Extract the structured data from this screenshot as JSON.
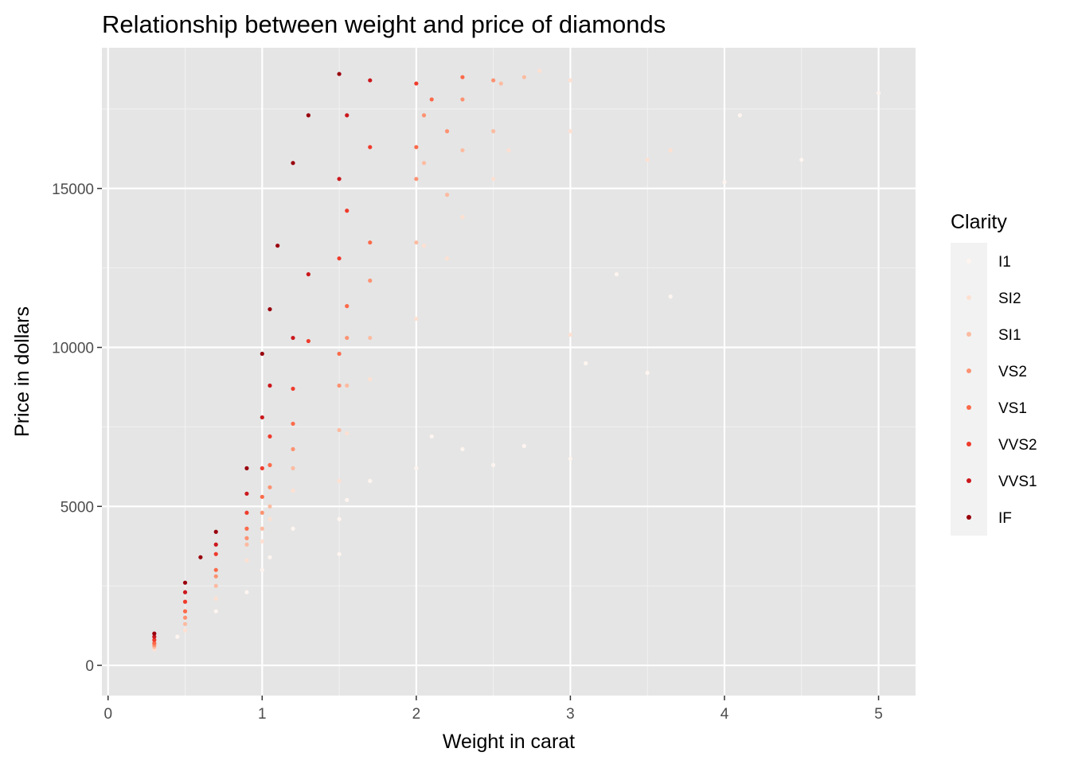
{
  "chart_data": {
    "type": "scatter",
    "title": "Relationship between weight and price of diamonds",
    "xlabel": "Weight in carat",
    "ylabel": "Price in dollars",
    "xlim": [
      0,
      5.2
    ],
    "ylim": [
      0,
      19000
    ],
    "x_ticks": [
      0,
      1,
      2,
      3,
      4,
      5
    ],
    "y_ticks": [
      0,
      5000,
      10000,
      15000
    ],
    "grid": true,
    "legend": {
      "title": "Clarity",
      "position": "right",
      "entries": [
        {
          "name": "I1",
          "color": "#fff5f0"
        },
        {
          "name": "SI2",
          "color": "#fee0d2"
        },
        {
          "name": "SI1",
          "color": "#fcbba1"
        },
        {
          "name": "VS2",
          "color": "#fc9272"
        },
        {
          "name": "VS1",
          "color": "#fb6a4a"
        },
        {
          "name": "VVS2",
          "color": "#ef3b2c"
        },
        {
          "name": "VVS1",
          "color": "#cb181d"
        },
        {
          "name": "IF",
          "color": "#99000d"
        }
      ]
    },
    "series": [
      {
        "name": "I1",
        "points": [
          [
            0.45,
            900
          ],
          [
            0.7,
            1700
          ],
          [
            0.9,
            2300
          ],
          [
            1.0,
            3000
          ],
          [
            1.05,
            3400
          ],
          [
            1.2,
            4300
          ],
          [
            1.5,
            3500
          ],
          [
            1.5,
            4600
          ],
          [
            1.55,
            5200
          ],
          [
            1.7,
            5800
          ],
          [
            2.0,
            6200
          ],
          [
            2.1,
            7200
          ],
          [
            2.3,
            6800
          ],
          [
            2.5,
            6300
          ],
          [
            2.7,
            6900
          ],
          [
            3.0,
            6500
          ],
          [
            3.1,
            9500
          ],
          [
            3.3,
            12300
          ],
          [
            3.5,
            9200
          ],
          [
            3.65,
            11600
          ],
          [
            4.0,
            15200
          ],
          [
            4.1,
            17300
          ],
          [
            4.5,
            15900
          ],
          [
            5.0,
            18000
          ]
        ]
      },
      {
        "name": "SI2",
        "points": [
          [
            0.3,
            500
          ],
          [
            0.5,
            1100
          ],
          [
            0.7,
            2100
          ],
          [
            0.9,
            3300
          ],
          [
            1.0,
            3900
          ],
          [
            1.05,
            4600
          ],
          [
            1.2,
            5500
          ],
          [
            1.5,
            5800
          ],
          [
            1.55,
            7300
          ],
          [
            1.7,
            9000
          ],
          [
            2.0,
            10900
          ],
          [
            2.05,
            13200
          ],
          [
            2.2,
            12800
          ],
          [
            2.3,
            14100
          ],
          [
            2.5,
            15300
          ],
          [
            2.6,
            16200
          ],
          [
            2.8,
            18700
          ],
          [
            3.0,
            18400
          ],
          [
            3.0,
            10400
          ],
          [
            3.0,
            16800
          ],
          [
            3.5,
            15900
          ],
          [
            3.65,
            16200
          ]
        ]
      },
      {
        "name": "SI1",
        "points": [
          [
            0.3,
            580
          ],
          [
            0.5,
            1300
          ],
          [
            0.7,
            2500
          ],
          [
            0.9,
            3800
          ],
          [
            1.0,
            4300
          ],
          [
            1.05,
            5000
          ],
          [
            1.2,
            6200
          ],
          [
            1.5,
            7400
          ],
          [
            1.55,
            8800
          ],
          [
            1.7,
            10300
          ],
          [
            2.0,
            13300
          ],
          [
            2.05,
            15800
          ],
          [
            2.2,
            14800
          ],
          [
            2.3,
            16200
          ],
          [
            2.5,
            16800
          ],
          [
            2.55,
            18300
          ],
          [
            2.7,
            18500
          ]
        ]
      },
      {
        "name": "VS2",
        "points": [
          [
            0.3,
            640
          ],
          [
            0.5,
            1500
          ],
          [
            0.7,
            2800
          ],
          [
            0.9,
            4000
          ],
          [
            1.0,
            4800
          ],
          [
            1.05,
            5600
          ],
          [
            1.2,
            6800
          ],
          [
            1.5,
            8800
          ],
          [
            1.55,
            10300
          ],
          [
            1.7,
            12100
          ],
          [
            2.0,
            15300
          ],
          [
            2.05,
            17300
          ],
          [
            2.2,
            16800
          ],
          [
            2.3,
            17800
          ],
          [
            2.5,
            18400
          ]
        ]
      },
      {
        "name": "VS1",
        "points": [
          [
            0.3,
            700
          ],
          [
            0.5,
            1700
          ],
          [
            0.7,
            3000
          ],
          [
            0.9,
            4300
          ],
          [
            1.0,
            5300
          ],
          [
            1.05,
            6300
          ],
          [
            1.2,
            7600
          ],
          [
            1.5,
            9800
          ],
          [
            1.55,
            11300
          ],
          [
            1.7,
            13300
          ],
          [
            2.0,
            16300
          ],
          [
            2.1,
            17800
          ],
          [
            2.3,
            18500
          ]
        ]
      },
      {
        "name": "VVS2",
        "points": [
          [
            0.3,
            800
          ],
          [
            0.5,
            2000
          ],
          [
            0.7,
            3500
          ],
          [
            0.9,
            4800
          ],
          [
            1.0,
            6200
          ],
          [
            1.05,
            7200
          ],
          [
            1.2,
            8700
          ],
          [
            1.3,
            10200
          ],
          [
            1.5,
            12800
          ],
          [
            1.55,
            14300
          ],
          [
            1.7,
            16300
          ],
          [
            2.0,
            18300
          ]
        ]
      },
      {
        "name": "VVS1",
        "points": [
          [
            0.3,
            900
          ],
          [
            0.5,
            2300
          ],
          [
            0.7,
            3800
          ],
          [
            0.9,
            5400
          ],
          [
            1.0,
            7800
          ],
          [
            1.05,
            8800
          ],
          [
            1.2,
            10300
          ],
          [
            1.3,
            12300
          ],
          [
            1.5,
            15300
          ],
          [
            1.55,
            17300
          ],
          [
            1.7,
            18400
          ]
        ]
      },
      {
        "name": "IF",
        "points": [
          [
            0.3,
            1000
          ],
          [
            0.5,
            2600
          ],
          [
            0.6,
            3400
          ],
          [
            0.7,
            4200
          ],
          [
            0.9,
            6200
          ],
          [
            1.0,
            9800
          ],
          [
            1.05,
            11200
          ],
          [
            1.1,
            13200
          ],
          [
            1.2,
            15800
          ],
          [
            1.3,
            17300
          ],
          [
            1.5,
            18600
          ]
        ]
      }
    ]
  }
}
